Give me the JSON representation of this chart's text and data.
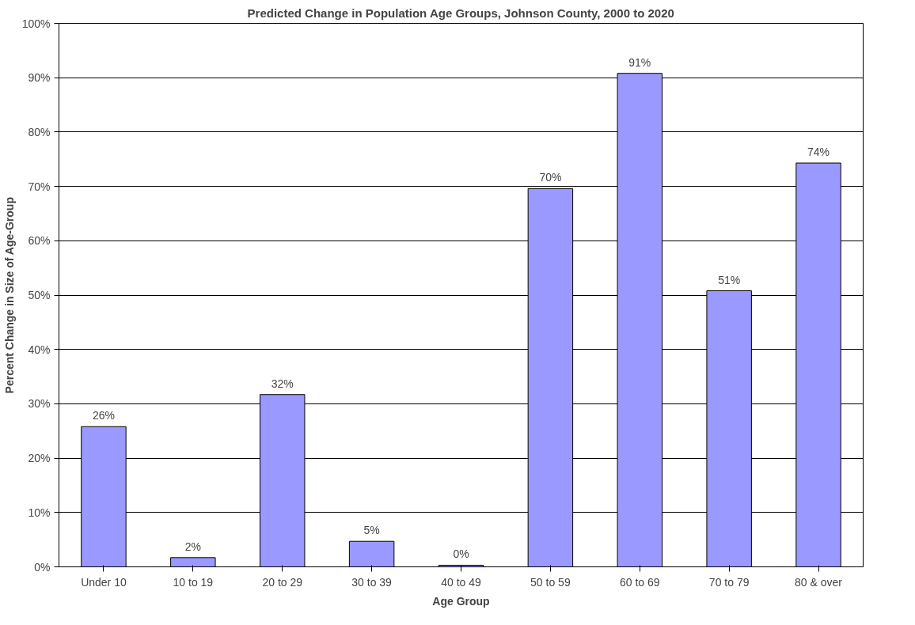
{
  "chart_data": {
    "type": "bar",
    "title": "Predicted Change in Population Age Groups, Johnson County, 2000 to 2020",
    "xlabel": "Age Group",
    "ylabel": "Percent Change in Size of Age-Group",
    "categories": [
      "Under 10",
      "10 to 19",
      "20 to 29",
      "30 to 39",
      "40 to 49",
      "50 to 59",
      "60 to 69",
      "70 to 79",
      "80 & over"
    ],
    "values": [
      25.8,
      1.7,
      31.7,
      4.7,
      0.3,
      69.6,
      90.8,
      50.8,
      74.3
    ],
    "value_labels": [
      "26%",
      "2%",
      "32%",
      "5%",
      "0%",
      "70%",
      "91%",
      "51%",
      "74%"
    ],
    "color": "#9999ff",
    "ylim": [
      0,
      100
    ],
    "yticks": [
      {
        "value": 0,
        "label": "0%"
      },
      {
        "value": 10,
        "label": "10%"
      },
      {
        "value": 20,
        "label": "20%"
      },
      {
        "value": 30,
        "label": "30%"
      },
      {
        "value": 40,
        "label": "40%"
      },
      {
        "value": 50,
        "label": "50%"
      },
      {
        "value": 60,
        "label": "60%"
      },
      {
        "value": 70,
        "label": "70%"
      },
      {
        "value": 80,
        "label": "80%"
      },
      {
        "value": 90,
        "label": "90%"
      },
      {
        "value": 100,
        "label": "100%"
      }
    ],
    "grid": "y"
  }
}
